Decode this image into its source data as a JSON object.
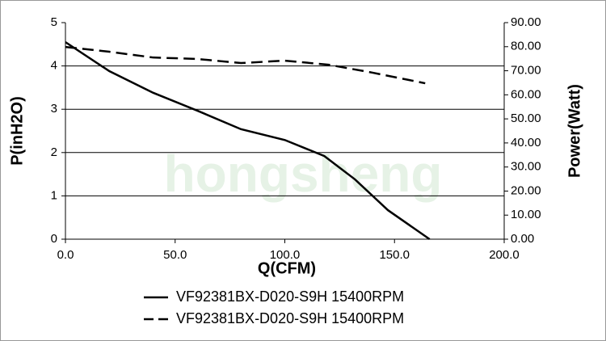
{
  "chart_data": {
    "type": "line",
    "watermark": "hongsheng",
    "x_label": "Q(CFM)",
    "y_label": "P(inH2O)",
    "y2_label": "Power(Watt)",
    "xlim": [
      0,
      200
    ],
    "xticks": [
      {
        "value": 0,
        "label": "0.0"
      },
      {
        "value": 50,
        "label": "50.0"
      },
      {
        "value": 100,
        "label": "100.0"
      },
      {
        "value": 150,
        "label": "150.0"
      },
      {
        "value": 200,
        "label": "200.0"
      }
    ],
    "ylim": [
      0,
      5
    ],
    "yticks": [
      0,
      1,
      2,
      3,
      4,
      5
    ],
    "y2lim": [
      0,
      90
    ],
    "y2ticks": [
      {
        "value": 0,
        "label": "0.00"
      },
      {
        "value": 10,
        "label": "10.00"
      },
      {
        "value": 20,
        "label": "20.00"
      },
      {
        "value": 30,
        "label": "30.00"
      },
      {
        "value": 40,
        "label": "40.00"
      },
      {
        "value": 50,
        "label": "50.00"
      },
      {
        "value": 60,
        "label": "60.00"
      },
      {
        "value": 70,
        "label": "70.00"
      },
      {
        "value": 80,
        "label": "80.00"
      },
      {
        "value": 90,
        "label": "90.00"
      }
    ],
    "grid": true,
    "series": [
      {
        "name": "VF92381BX-D020-S9H 15400RPM",
        "color": "#000000",
        "dash": "solid",
        "x": [
          0,
          20,
          40,
          60,
          80,
          100,
          118,
          132,
          147,
          166
        ],
        "values": [
          4.55,
          3.88,
          3.38,
          2.97,
          2.54,
          2.29,
          1.92,
          1.38,
          0.67,
          0
        ]
      },
      {
        "name": "VF92381BX-D020-S9H 15400RPM",
        "color": "#000000",
        "dash": "dashed",
        "axis": "y2",
        "x": [
          0,
          20,
          40,
          60,
          80,
          100,
          120,
          140,
          164
        ],
        "values": [
          79.9,
          77.9,
          75.5,
          74.9,
          73.2,
          74.2,
          72.5,
          69.2,
          64.8
        ]
      }
    ]
  }
}
